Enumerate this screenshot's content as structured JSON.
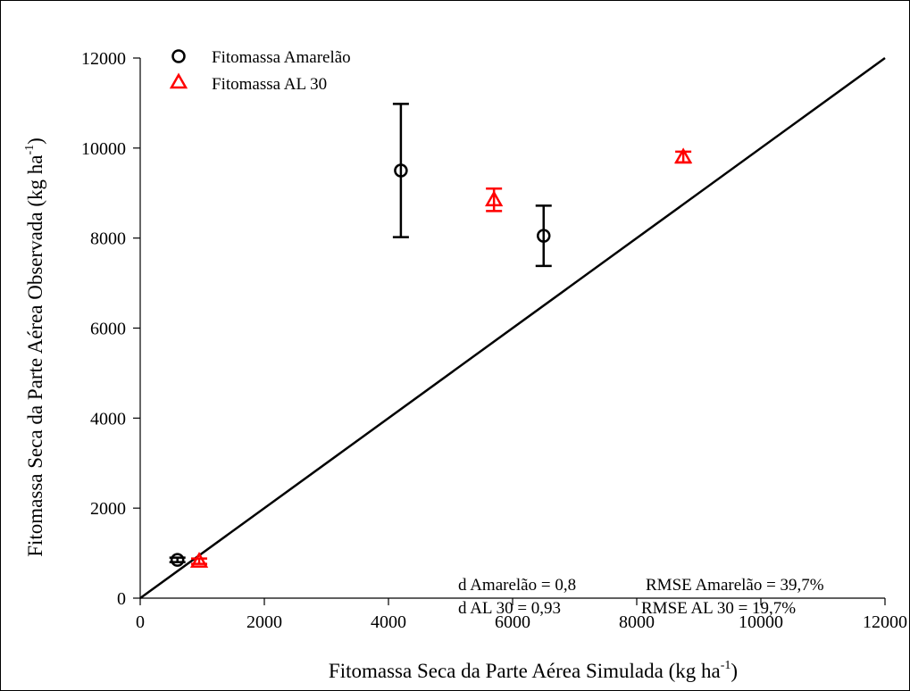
{
  "chart_data": {
    "type": "scatter",
    "title": "",
    "xlabel": "Fitomassa Seca da Parte Aérea Simulada (kg ha",
    "xlabel_sup": "-1",
    "xlabel_end": ")",
    "ylabel": "Fitomassa Seca da Parte Aérea Observada (kg ha",
    "ylabel_sup": "-1",
    "ylabel_end": ")",
    "xlim": [
      0,
      12000
    ],
    "ylim": [
      0,
      12000
    ],
    "x_ticks": [
      0,
      2000,
      4000,
      6000,
      8000,
      10000,
      12000
    ],
    "y_ticks": [
      0,
      2000,
      4000,
      6000,
      8000,
      10000,
      12000
    ],
    "x_tick_labels": [
      "0",
      "2000",
      "4000",
      "6000",
      "8000",
      "10000",
      "12000"
    ],
    "y_tick_labels": [
      "0",
      "2000",
      "4000",
      "6000",
      "8000",
      "10000",
      "12000"
    ],
    "grid": false,
    "legend_position": "top-left",
    "reference_line": {
      "from": [
        0,
        0
      ],
      "to": [
        12000,
        12000
      ],
      "color": "#000000"
    },
    "series": [
      {
        "name": "Fitomassa Amarelão",
        "marker": "circle",
        "color": "#000000",
        "points": [
          {
            "x": 600,
            "y": 850,
            "err": 50
          },
          {
            "x": 4200,
            "y": 9500,
            "err": 1480
          },
          {
            "x": 6500,
            "y": 8050,
            "err": 670
          }
        ]
      },
      {
        "name": "Fitomassa AL 30",
        "marker": "triangle",
        "color": "#ff0000",
        "points": [
          {
            "x": 950,
            "y": 820,
            "err": 60
          },
          {
            "x": 5700,
            "y": 8850,
            "err": 250
          },
          {
            "x": 8750,
            "y": 9800,
            "err": 120
          }
        ]
      }
    ],
    "annotations": [
      "d Amarelão = 0,8",
      "RMSE Amarelão = 39,7%",
      "d AL 30 = 0,93",
      "RMSE AL 30 = 19,7%"
    ]
  }
}
